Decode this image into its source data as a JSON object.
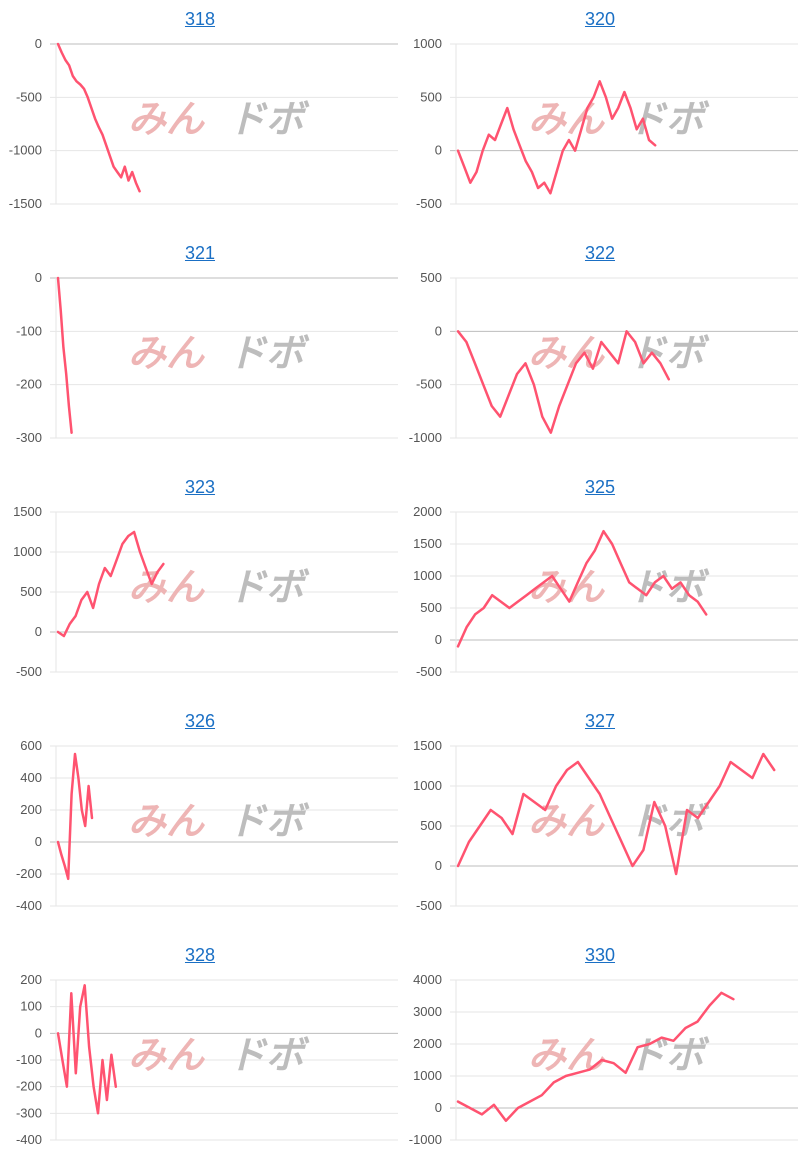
{
  "accent_color": "#ff5370",
  "link_color": "#1a6fc4",
  "watermark": {
    "part1": "みん",
    "part2": "ドボ"
  },
  "chart_data": [
    {
      "type": "line",
      "title": "318",
      "yticks": [
        "0",
        "-500",
        "-1000",
        "-1500"
      ],
      "ylim": [
        -1500,
        0
      ],
      "x_extent": 0.24,
      "values": [
        0,
        -80,
        -150,
        -200,
        -300,
        -350,
        -380,
        -420,
        -500,
        -600,
        -700,
        -780,
        -850,
        -950,
        -1050,
        -1150,
        -1200,
        -1250,
        -1150,
        -1280,
        -1200,
        -1300,
        -1380
      ]
    },
    {
      "type": "line",
      "title": "320",
      "yticks": [
        "1000",
        "500",
        "0",
        "-500"
      ],
      "ylim": [
        -500,
        1000
      ],
      "x_extent": 0.58,
      "values": [
        0,
        -150,
        -300,
        -200,
        0,
        150,
        100,
        250,
        400,
        200,
        50,
        -100,
        -200,
        -350,
        -300,
        -400,
        -200,
        0,
        100,
        0,
        200,
        400,
        500,
        650,
        500,
        300,
        400,
        550,
        400,
        200,
        300,
        100,
        50
      ]
    },
    {
      "type": "line",
      "title": "321",
      "yticks": [
        "0",
        "-100",
        "-200",
        "-300"
      ],
      "ylim": [
        -300,
        0
      ],
      "x_extent": 0.04,
      "values": [
        0,
        -60,
        -130,
        -180,
        -240,
        -290
      ]
    },
    {
      "type": "line",
      "title": "322",
      "yticks": [
        "500",
        "0",
        "-500",
        "-1000"
      ],
      "ylim": [
        -1000,
        500
      ],
      "x_extent": 0.62,
      "values": [
        0,
        -100,
        -300,
        -500,
        -700,
        -800,
        -600,
        -400,
        -300,
        -500,
        -800,
        -950,
        -700,
        -500,
        -300,
        -200,
        -350,
        -100,
        -200,
        -300,
        0,
        -100,
        -300,
        -200,
        -300,
        -450
      ]
    },
    {
      "type": "line",
      "title": "323",
      "yticks": [
        "1500",
        "1000",
        "500",
        "0",
        "-500"
      ],
      "ylim": [
        -500,
        1500
      ],
      "x_extent": 0.31,
      "values": [
        0,
        -50,
        100,
        200,
        400,
        500,
        300,
        600,
        800,
        700,
        900,
        1100,
        1200,
        1250,
        1000,
        800,
        600,
        750,
        850
      ]
    },
    {
      "type": "line",
      "title": "325",
      "yticks": [
        "2000",
        "1500",
        "1000",
        "500",
        "0",
        "-500"
      ],
      "ylim": [
        -500,
        2000
      ],
      "x_extent": 0.73,
      "values": [
        -100,
        200,
        400,
        500,
        700,
        600,
        500,
        600,
        700,
        800,
        900,
        1000,
        800,
        600,
        900,
        1200,
        1400,
        1700,
        1500,
        1200,
        900,
        800,
        700,
        900,
        1000,
        800,
        900,
        700,
        600,
        400
      ]
    },
    {
      "type": "line",
      "title": "326",
      "yticks": [
        "600",
        "400",
        "200",
        "0",
        "-200",
        "-400"
      ],
      "ylim": [
        -400,
        600
      ],
      "x_extent": 0.1,
      "values": [
        0,
        -80,
        -150,
        -230,
        300,
        550,
        400,
        200,
        100,
        350,
        150
      ]
    },
    {
      "type": "line",
      "title": "327",
      "yticks": [
        "1500",
        "1000",
        "500",
        "0",
        "-500"
      ],
      "ylim": [
        -500,
        1500
      ],
      "x_extent": 0.93,
      "values": [
        0,
        300,
        500,
        700,
        600,
        400,
        900,
        800,
        700,
        1000,
        1200,
        1300,
        1100,
        900,
        600,
        300,
        0,
        200,
        800,
        500,
        -100,
        700,
        600,
        800,
        1000,
        1300,
        1200,
        1100,
        1400,
        1200
      ]
    },
    {
      "type": "line",
      "title": "328",
      "yticks": [
        "200",
        "100",
        "0",
        "-100",
        "-200",
        "-300",
        "-400"
      ],
      "ylim": [
        -400,
        200
      ],
      "x_extent": 0.17,
      "values": [
        0,
        -100,
        -200,
        150,
        -150,
        100,
        180,
        -50,
        -200,
        -300,
        -100,
        -250,
        -80,
        -200
      ]
    },
    {
      "type": "line",
      "title": "330",
      "yticks": [
        "4000",
        "3000",
        "2000",
        "1000",
        "0",
        "-1000"
      ],
      "ylim": [
        -1000,
        4000
      ],
      "x_extent": 0.81,
      "values": [
        200,
        0,
        -200,
        100,
        -400,
        0,
        200,
        400,
        800,
        1000,
        1100,
        1200,
        1500,
        1400,
        1100,
        1900,
        2000,
        2200,
        2100,
        2500,
        2700,
        3200,
        3600,
        3400
      ]
    }
  ]
}
